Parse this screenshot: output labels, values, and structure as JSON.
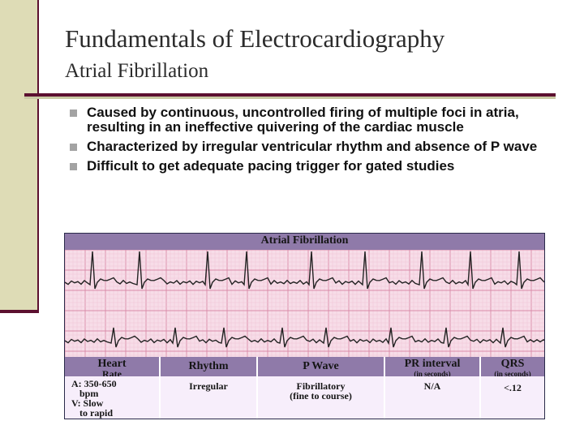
{
  "slide": {
    "title": "Fundamentals of Electrocardiography",
    "subtitle": "Atrial Fibrillation",
    "bullets": [
      "Caused by continuous, uncontrolled firing of multiple foci in atria, resulting in an ineffective quivering of the cardiac muscle",
      "Characterized by irregular ventricular rhythm and absence of P wave",
      "Difficult to get adequate pacing trigger for gated studies"
    ]
  },
  "figure": {
    "title": "Atrial Fibrillation",
    "table": {
      "headers": [
        {
          "main": "Heart",
          "sub": "Rate"
        },
        {
          "main": "Rhythm",
          "sub": ""
        },
        {
          "main": "P Wave",
          "sub": ""
        },
        {
          "main": "PR interval",
          "sub": "(in seconds)"
        },
        {
          "main": "QRS",
          "sub": "(in seconds)"
        }
      ],
      "row": {
        "heart_rate": [
          "A: 350-650",
          "bpm",
          "V: Slow",
          "to rapid"
        ],
        "rhythm": "Irregular",
        "p_wave": [
          "Fibrillatory",
          "(fine to course)"
        ],
        "pr_interval": "N/A",
        "qrs": "<.12"
      }
    }
  }
}
